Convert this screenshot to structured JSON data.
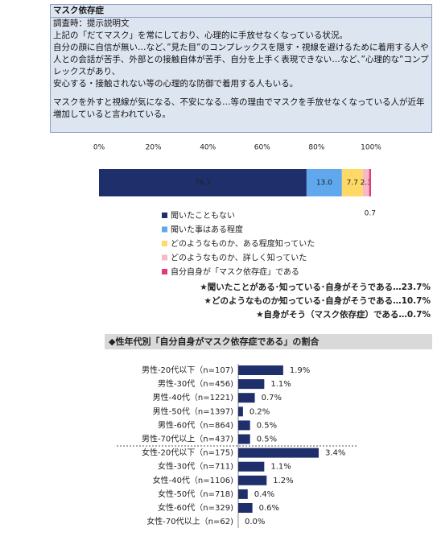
{
  "info_box": {
    "title": "マスク依存症",
    "lines": [
      "調査時：提示説明文",
      "上記の「だてマスク」を常にしており、心理的に手放せなくなっている状況。",
      "自分の顔に自信が無い…など、”見た目”のコンプレックスを隠す・視線を避けるために着用する人や",
      "人との会話が苦手、外部との接触自体が苦手、自分を上手く表現できない…など、”心理的な”コンプレックスがあり、",
      "安心する・接触されない等の心理的な防御で着用する人もいる。",
      "マスクを外すと視線が気になる、不安になる…等の理由でマスクを手放せなくなっている人が近年増加していると言われている。"
    ]
  },
  "chart_data": [
    {
      "type": "stacked-bar",
      "categories": [
        null
      ],
      "xlim": [
        0,
        100
      ],
      "xticks": [
        {
          "value": 0,
          "label": "0%"
        },
        {
          "value": 20,
          "label": "20%"
        },
        {
          "value": 40,
          "label": "40%"
        },
        {
          "value": 60,
          "label": "60%"
        },
        {
          "value": 80,
          "label": "80%"
        },
        {
          "value": 100,
          "label": "100%"
        }
      ],
      "series": [
        {
          "name": "聞いたこともない",
          "color": "#1f2f6b",
          "values": [
            76.3
          ],
          "value_labels": [
            "76.3"
          ]
        },
        {
          "name": "聞いた事はある程度",
          "color": "#5fa8ee",
          "values": [
            13.0
          ],
          "value_labels": [
            "13.0"
          ]
        },
        {
          "name": "どのようなものか、ある程度知っていた",
          "color": "#ffd966",
          "values": [
            7.7
          ],
          "value_labels": [
            "7.7"
          ]
        },
        {
          "name": "どのようなものか、詳しく知っていた",
          "color": "#f7b8c8",
          "values": [
            2.3
          ],
          "value_labels": [
            "2.3"
          ]
        },
        {
          "name": "自分自身が「マスク依存症」である",
          "color": "#e03c7c",
          "values": [
            0.7
          ],
          "value_labels": [
            "0.7"
          ]
        }
      ],
      "annotations": [
        "★聞いたことがある･知っている･自身がそうである…23.7%",
        "★どのようなものか知っている･自身がそうである…10.7%",
        "★自身がそう（マスク依存症）である…0.7%"
      ]
    },
    {
      "type": "hbar",
      "title": "◆性年代別「自分自身がマスク依存症である」の割合",
      "color": "#1f2f6b",
      "categories": [
        "男性-20代以下（n=107)",
        "男性-30代（n=456)",
        "男性-40代（n=1221)",
        "男性-50代（n=1397)",
        "男性-60代（n=864)",
        "男性-70代以上（n=437)",
        "女性-20代以下（n=175)",
        "女性-30代（n=711)",
        "女性-40代（n=1106)",
        "女性-50代（n=718)",
        "女性-60代（n=329)",
        "女性-70代以上（n=62)"
      ],
      "values": [
        1.9,
        1.1,
        0.7,
        0.2,
        0.5,
        0.5,
        3.4,
        1.1,
        1.2,
        0.4,
        0.6,
        0.0
      ],
      "value_labels": [
        "1.9%",
        "1.1%",
        "0.7%",
        "0.2%",
        "0.5%",
        "0.5%",
        "3.4%",
        "1.1%",
        "1.2%",
        "0.4%",
        "0.6%",
        "0.0%"
      ]
    }
  ]
}
